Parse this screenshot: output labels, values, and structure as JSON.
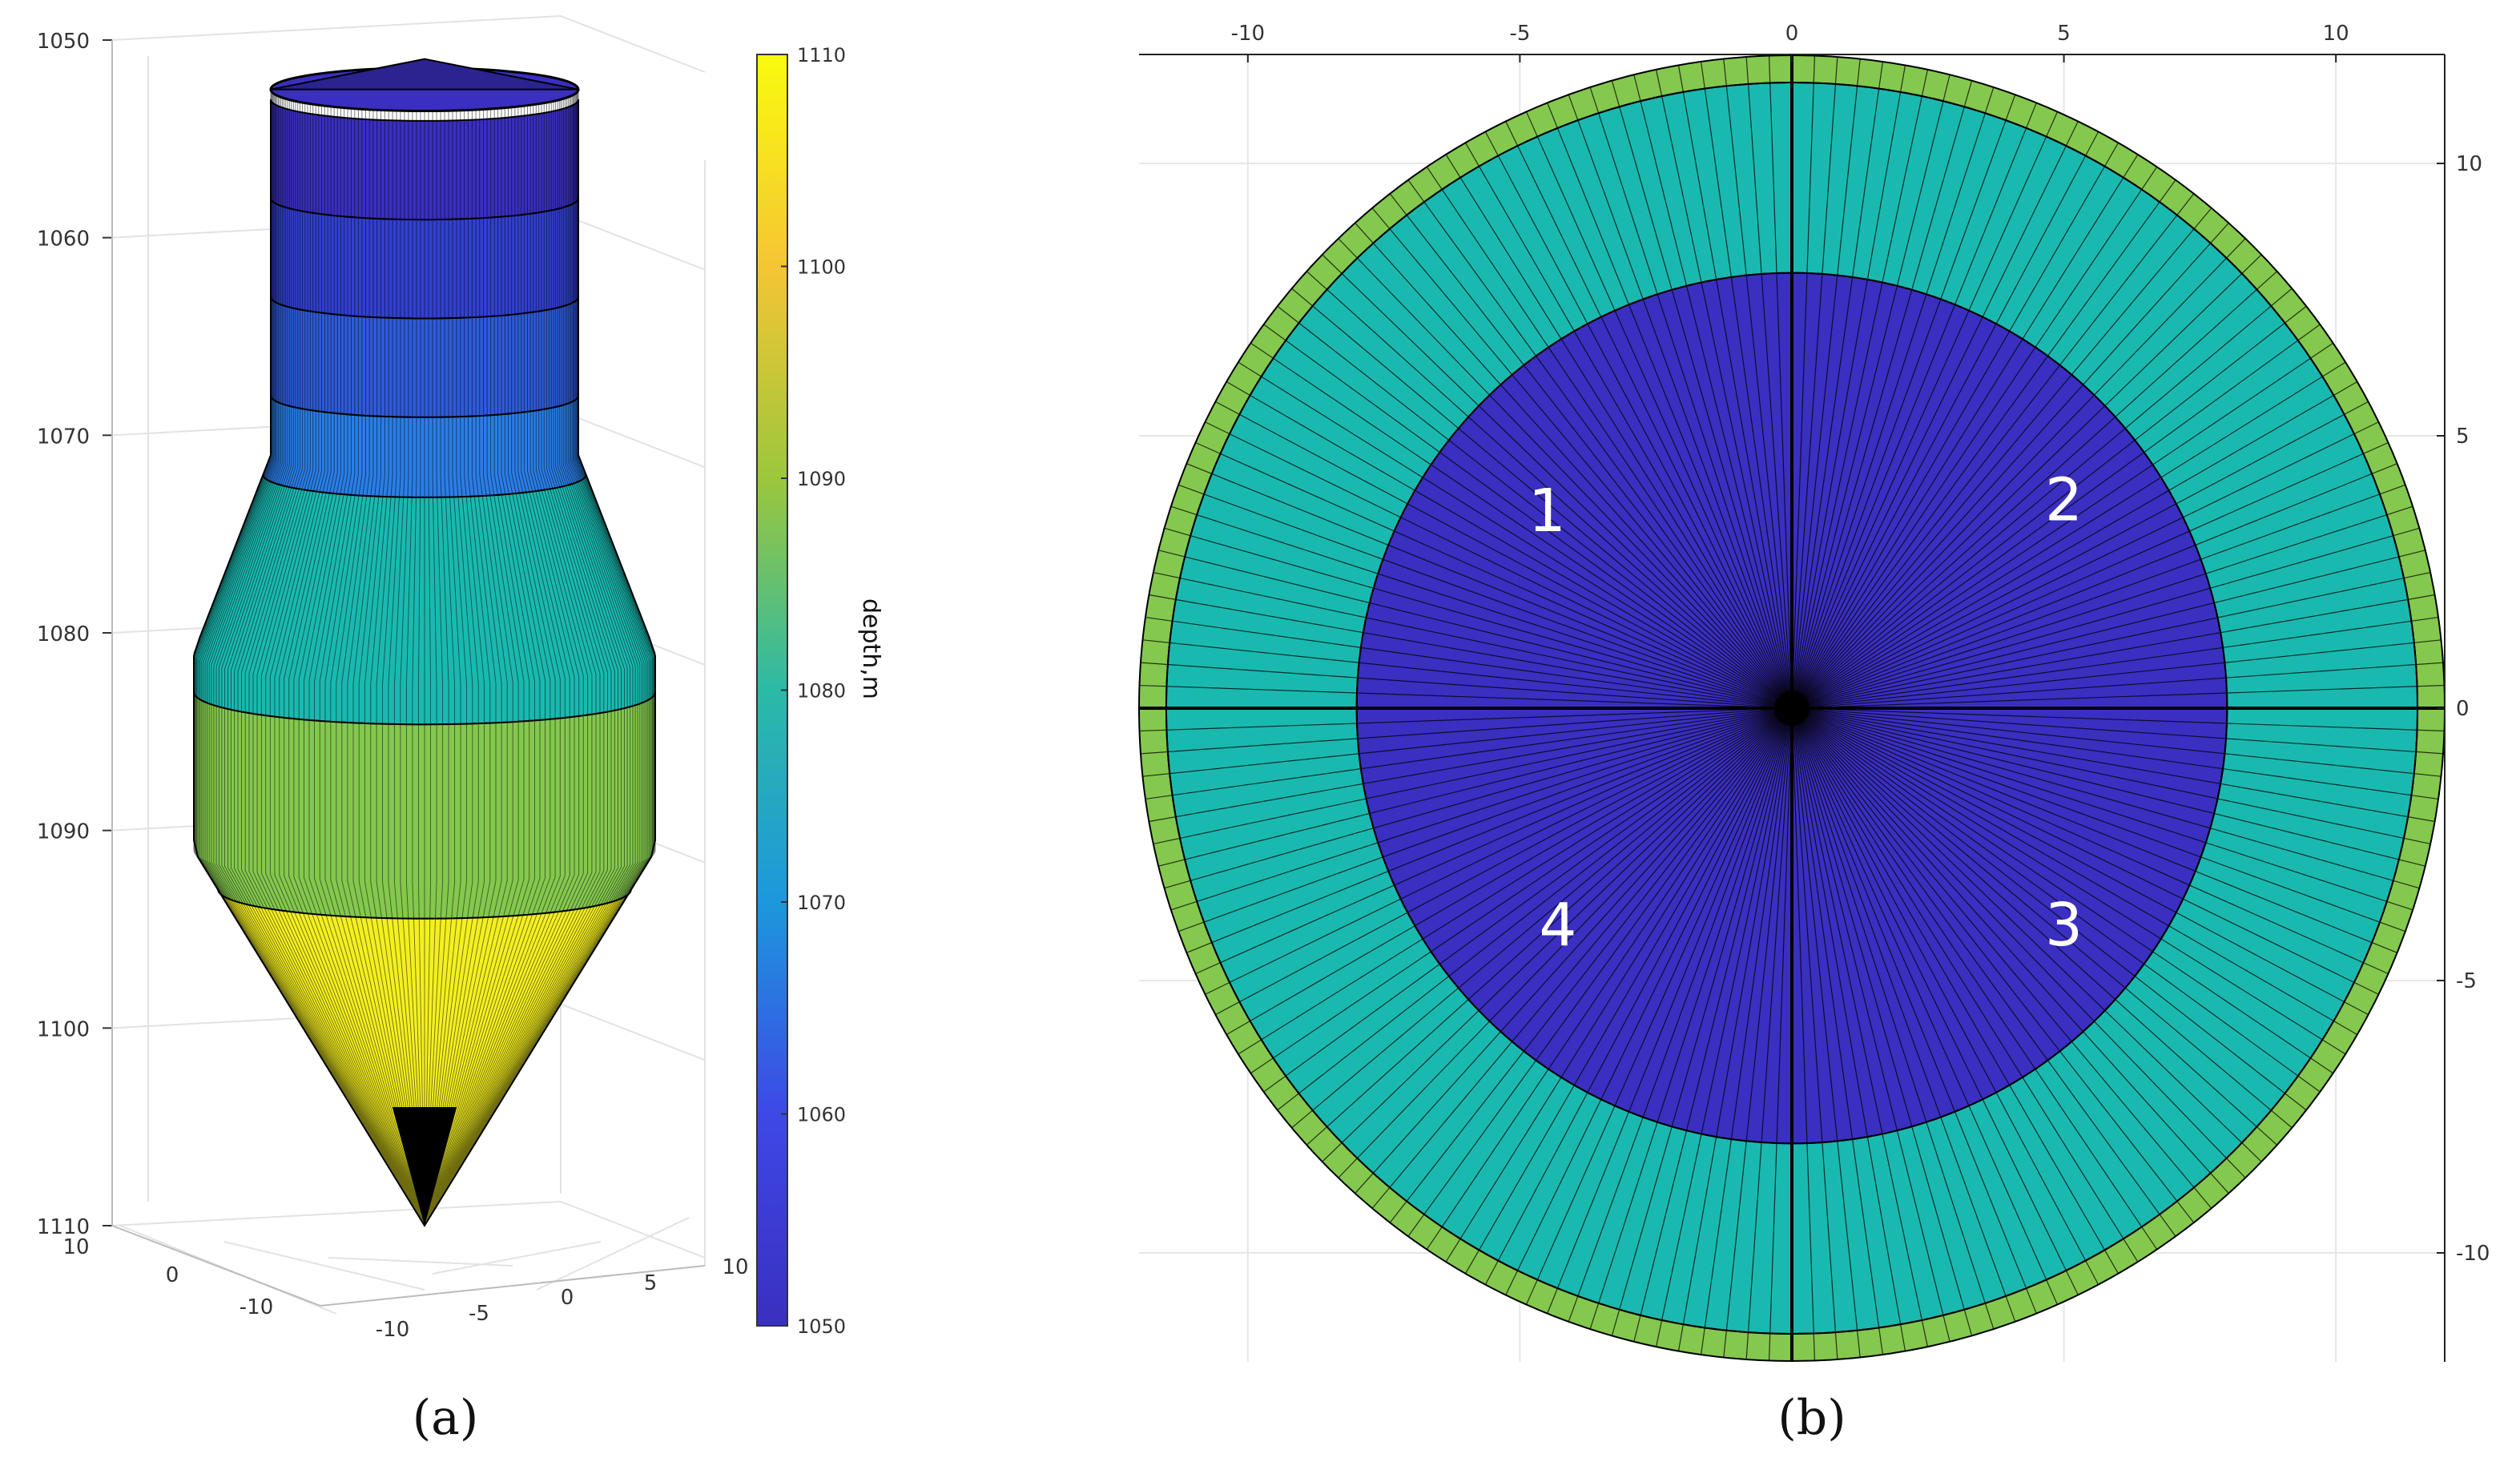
{
  "colors": {
    "blue": "#3a2fc0",
    "blue_mid": "#2f5bd9",
    "blue_light": "#2a7ee6",
    "teal": "#1ab9b0",
    "green": "#84c84e",
    "yellow": "#f4ef22",
    "outline": "#000000",
    "grid": "#e4e4e4",
    "axis": "#222222"
  },
  "chart_data": [
    {
      "type": "surface3d",
      "panel_label": "(a)",
      "colorbar": {
        "label": "depth,m",
        "range": [
          1050,
          1110
        ],
        "ticks": [
          "1110",
          "1100",
          "1090",
          "1080",
          "1070",
          "1060",
          "1050"
        ],
        "colormap": [
          "#f9fb0e",
          "#f5c534",
          "#9cc73c",
          "#2db9a6",
          "#1c98dc",
          "#3e48e6",
          "#3a2fc0"
        ]
      },
      "z_axis": {
        "ticks": [
          "1050",
          "1060",
          "1070",
          "1080",
          "1090",
          "1100",
          "1110"
        ],
        "range": [
          1050,
          1110
        ],
        "reversed": true
      },
      "x_axis": {
        "ticks": [
          "-10",
          "-5",
          "0",
          "5",
          "10"
        ]
      },
      "y_axis": {
        "ticks": [
          "10",
          "0",
          "-10"
        ]
      },
      "shape_profile": [
        {
          "depth": 1052,
          "radius": 8,
          "part": "top"
        },
        {
          "depth": 1071,
          "radius": 8,
          "part": "cylinder"
        },
        {
          "depth": 1081,
          "radius": 12,
          "part": "expanding cone"
        },
        {
          "depth": 1091,
          "radius": 12,
          "part": "cylinder"
        },
        {
          "depth": 1110,
          "radius": 0,
          "part": "bottom cone"
        }
      ],
      "layers": [
        {
          "from": 1053,
          "to": 1058,
          "color": "#3a2fc0"
        },
        {
          "from": 1058,
          "to": 1063,
          "color": "#3240d0"
        },
        {
          "from": 1063,
          "to": 1068,
          "color": "#2f5bd9"
        },
        {
          "from": 1068,
          "to": 1072,
          "color": "#2a7ee6"
        },
        {
          "from": 1072,
          "to": 1083,
          "color": "#1ab9b0"
        },
        {
          "from": 1083,
          "to": 1093,
          "color": "#84c84e"
        },
        {
          "from": 1093,
          "to": 1110,
          "color": "#f4ef22"
        }
      ]
    },
    {
      "type": "polar_grid_topview",
      "panel_label": "(b)",
      "x_axis": {
        "ticks": [
          "-10",
          "-5",
          "0",
          "5",
          "10"
        ],
        "range": [
          -12,
          12
        ]
      },
      "y_axis": {
        "ticks": [
          "10",
          "5",
          "0",
          "-5",
          "-10"
        ],
        "range": [
          -12,
          12
        ]
      },
      "rings": [
        {
          "r_outer": 12,
          "r_inner": 11.5,
          "color": "#84c84e"
        },
        {
          "r_outer": 11.5,
          "r_inner": 8,
          "color": "#1ab9b0"
        },
        {
          "r_outer": 8,
          "r_inner": 0,
          "color": "#3a2fc0"
        }
      ],
      "sectors": 180,
      "quadrant_labels": [
        "1",
        "2",
        "3",
        "4"
      ]
    }
  ]
}
